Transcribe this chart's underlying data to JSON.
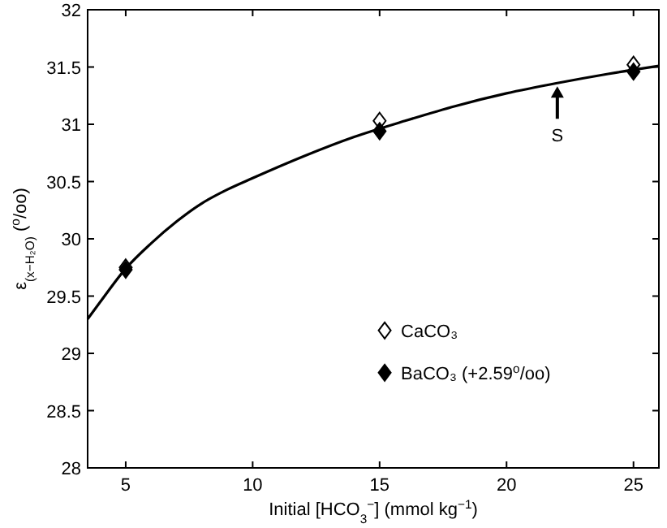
{
  "chart_data": {
    "type": "scatter",
    "xlabel": "Initial [HCO$_{3}$$^{−}$] (mmol kg$^{−1}$)",
    "ylabel": "ε$_{(x−H₂O)}$ ($^{o}$/oo)",
    "x": [
      5,
      15,
      25
    ],
    "series": [
      {
        "name": "CaCO₃",
        "color": "#ffffff",
        "marker": "diamond",
        "values": [
          29.75,
          31.03,
          31.52
        ]
      },
      {
        "name": "BaCO₃ (+2.59$^{o}$/oo)",
        "color": "#000000",
        "marker": "diamond",
        "values": [
          29.73,
          30.94,
          31.46
        ]
      },
      {
        "type": "line",
        "color": "#000000",
        "marker": "none",
        "line_style": "solid",
        "x": [
          3.5,
          4,
          5,
          6,
          7,
          8,
          9,
          10,
          12,
          14,
          16,
          18,
          20,
          22,
          24,
          26
        ],
        "values": [
          29.3,
          29.45,
          29.74,
          29.96,
          30.15,
          30.31,
          30.43,
          30.53,
          30.72,
          30.89,
          31.03,
          31.16,
          31.27,
          31.36,
          31.44,
          31.51
        ]
      }
    ],
    "xlim": [
      3.5,
      26
    ],
    "xticks": [
      5,
      10,
      15,
      20,
      25
    ],
    "ylim": [
      28,
      32
    ],
    "yticks": [
      28,
      28.5,
      29,
      29.5,
      30,
      30.5,
      31,
      31.5,
      32
    ],
    "grid": false,
    "legend": "bottom",
    "annotations": [
      {
        "text": "S",
        "x": 22,
        "y": 31.36
      }
    ]
  }
}
